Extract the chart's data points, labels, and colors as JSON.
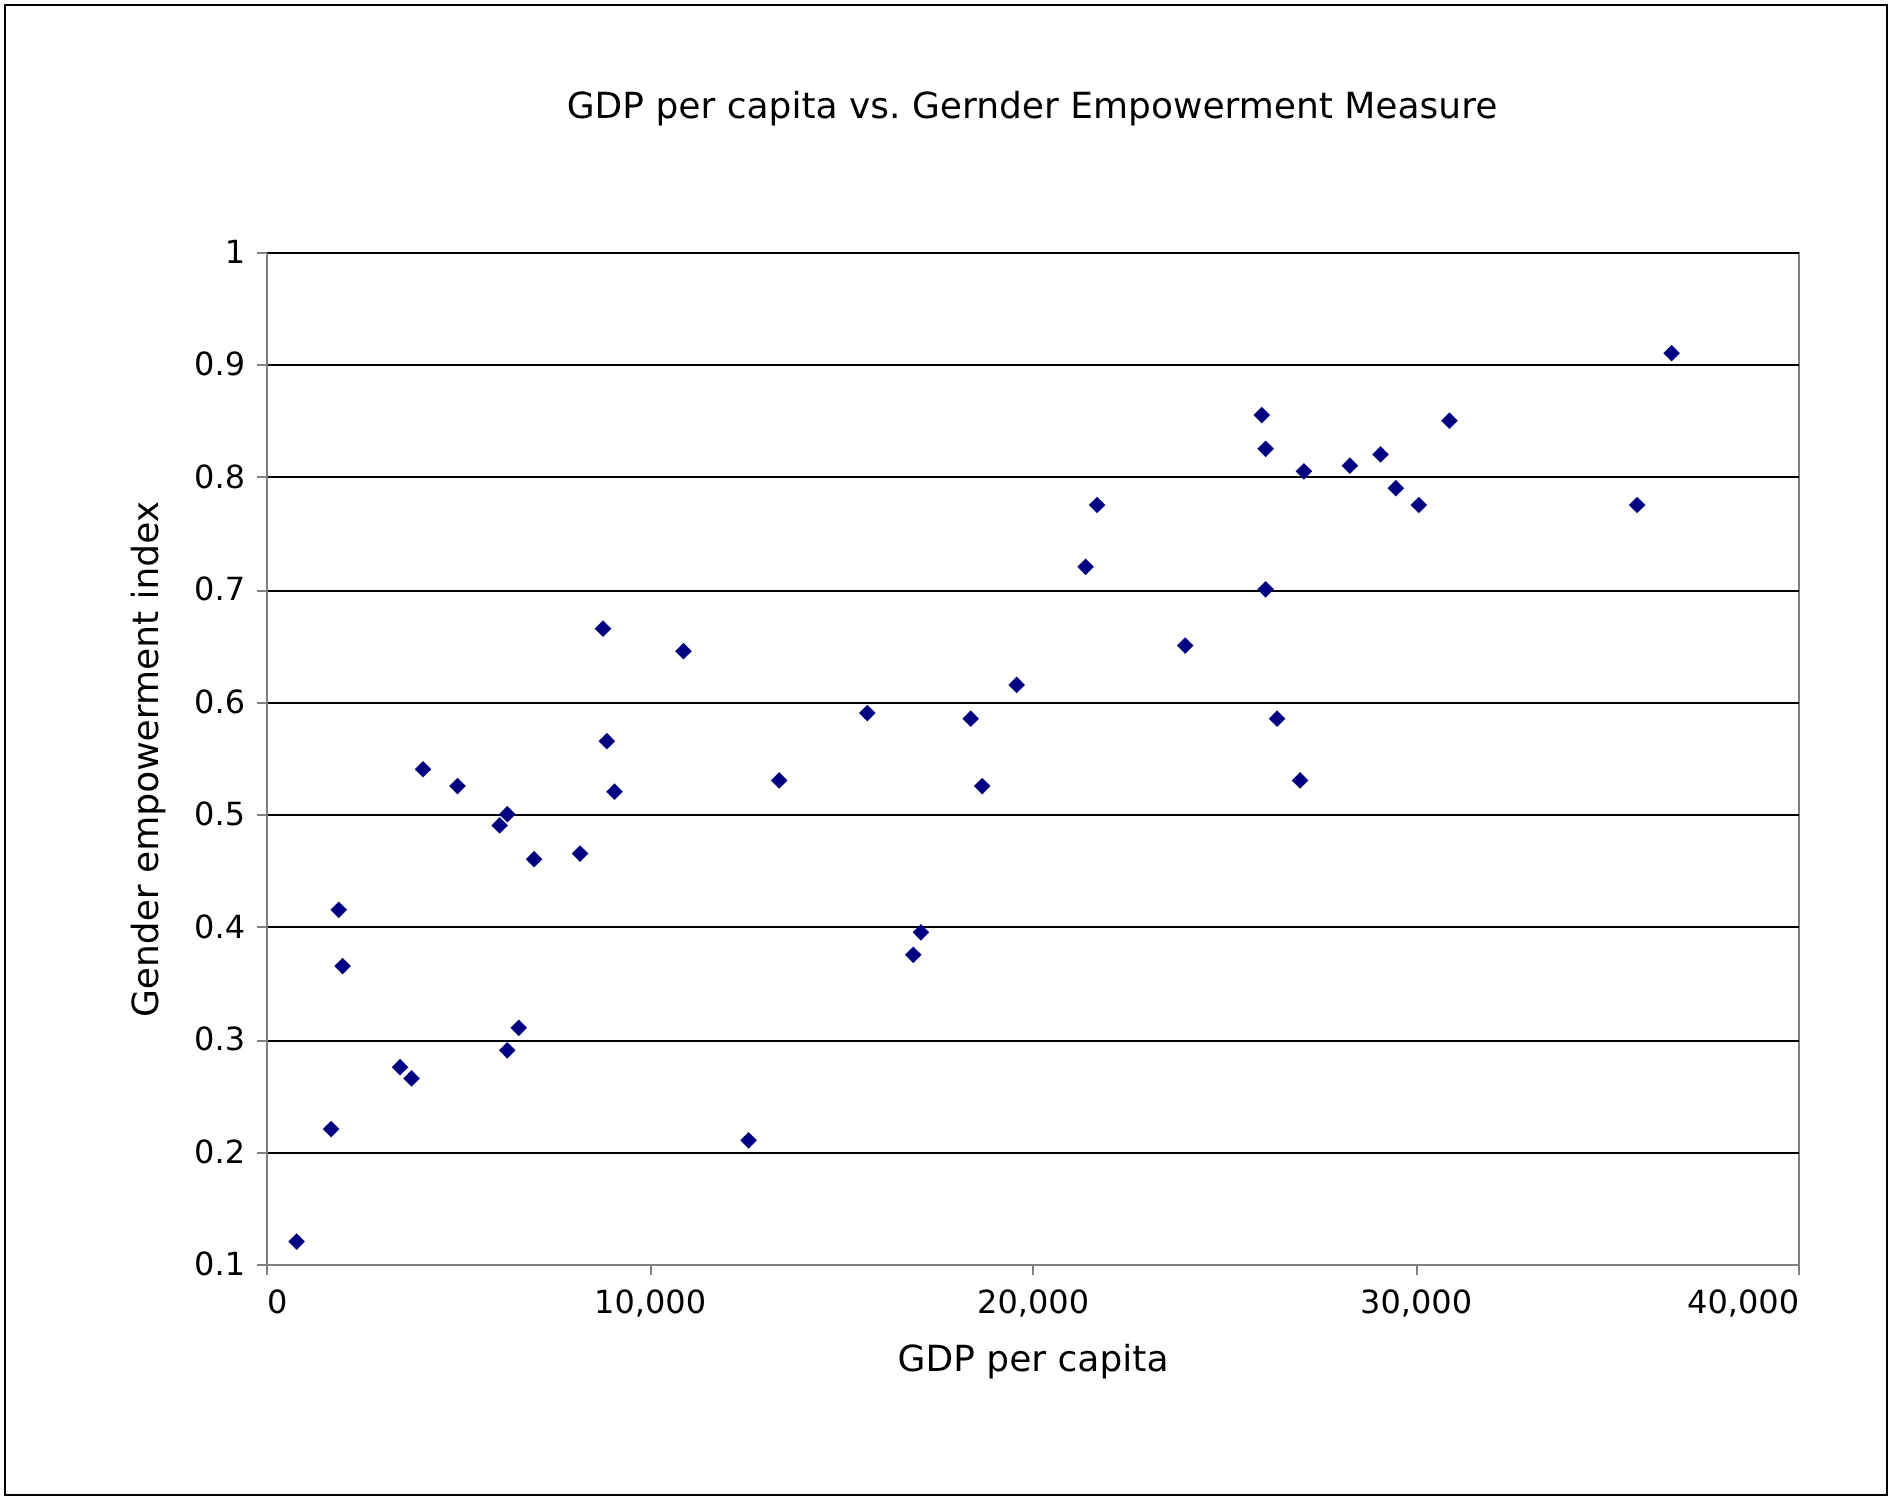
{
  "chart_data": {
    "type": "scatter",
    "title": "GDP per capita vs. Gernder Empowerment Measure",
    "xlabel": "GDP per capita",
    "ylabel": "Gender empowerment index",
    "x": [
      800,
      1700,
      1900,
      2000,
      3500,
      3800,
      4100,
      5000,
      6100,
      6300,
      6300,
      6600,
      7000,
      8200,
      8800,
      8900,
      9100,
      10900,
      12600,
      13400,
      15700,
      16900,
      17100,
      18400,
      18700,
      19600,
      21400,
      21700,
      24000,
      26000,
      26100,
      26100,
      26400,
      27000,
      27100,
      28300,
      29100,
      29500,
      30100,
      30900,
      35800,
      36700
    ],
    "series": [
      {
        "color": "#000080",
        "values": [
          0.12,
          0.22,
          0.415,
          0.365,
          0.275,
          0.265,
          0.54,
          0.525,
          0.49,
          0.5,
          0.29,
          0.31,
          0.46,
          0.465,
          0.665,
          0.565,
          0.52,
          0.645,
          0.21,
          0.53,
          0.59,
          0.375,
          0.395,
          0.585,
          0.525,
          0.615,
          0.72,
          0.775,
          0.65,
          0.855,
          0.825,
          0.7,
          0.585,
          0.53,
          0.805,
          0.81,
          0.82,
          0.79,
          0.775,
          0.85,
          0.775,
          0.91
        ]
      }
    ],
    "xlim": [
      0,
      40000
    ],
    "xticks": [
      0,
      {
        "value": 10000,
        "label": "10,000"
      },
      {
        "value": 20000,
        "label": "20,000"
      },
      {
        "value": 30000,
        "label": "30,000"
      },
      {
        "value": 40000,
        "label": "40,000"
      }
    ],
    "ylim": [
      0.1,
      1
    ],
    "yticks": [
      0.1,
      0.2,
      0.3,
      0.4,
      0.5,
      0.6,
      0.7,
      0.8,
      0.9,
      1
    ],
    "grid": "y",
    "marker": "diamond"
  }
}
